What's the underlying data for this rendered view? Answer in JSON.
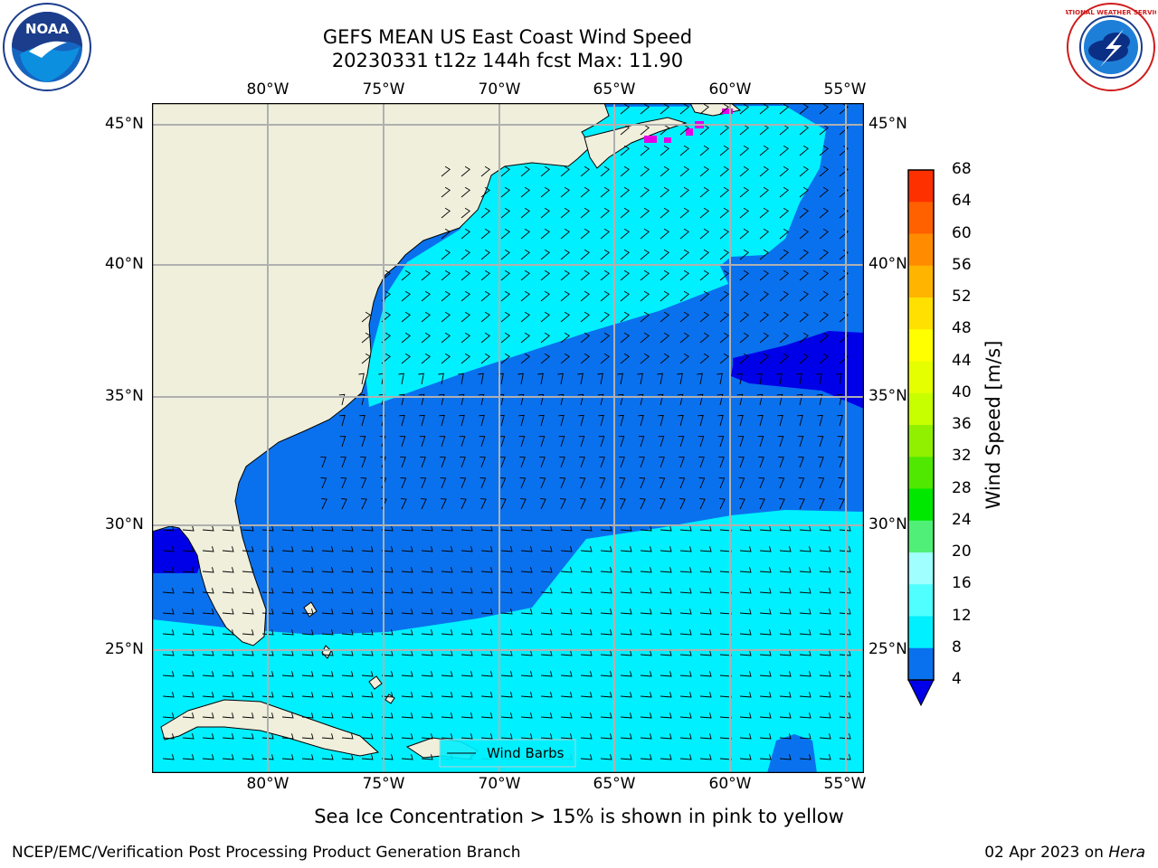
{
  "header": {
    "title_line1": "GEFS MEAN US East Coast Wind Speed",
    "title_line2": "20230331 t12z 144h fcst   Max: 11.90"
  },
  "logos": {
    "left": {
      "name": "noaa-logo",
      "text": "NOAA"
    },
    "right": {
      "name": "nws-logo",
      "text": "NATIONAL WEATHER SERVICE"
    }
  },
  "map": {
    "lon_labels": [
      "80°W",
      "75°W",
      "70°W",
      "65°W",
      "60°W",
      "55°W"
    ],
    "lat_labels": [
      "45°N",
      "40°N",
      "35°N",
      "30°N",
      "25°N"
    ],
    "legend_label": "Wind Barbs",
    "colors": {
      "land": "#efefdc",
      "band_4_8": "#0a71ee",
      "band_8_12": "#00f0ff",
      "band_below_4": "#0000e8",
      "sea_ice": "#e400e4",
      "grid": "#b0b0b0"
    }
  },
  "colorbar": {
    "label": "Wind Speed [m/s]",
    "ticks": [
      "68",
      "64",
      "60",
      "56",
      "52",
      "48",
      "44",
      "40",
      "36",
      "32",
      "28",
      "24",
      "20",
      "16",
      "12",
      "8",
      "4"
    ],
    "colors": [
      "#ff0000",
      "#ff3000",
      "#ff6000",
      "#ff8c00",
      "#ffb400",
      "#ffe000",
      "#ffff00",
      "#e6ff00",
      "#c8ff00",
      "#90f000",
      "#50e800",
      "#00e800",
      "#50f078",
      "#a0ffff",
      "#50ffff",
      "#00f0ff",
      "#0a71ee"
    ],
    "extend_color": "#0000e8"
  },
  "footer": {
    "note": "Sea Ice Concentration > 15% is shown in pink to yellow",
    "credit_left": "NCEP/EMC/Verification Post Processing Product Generation Branch",
    "date": "02 Apr 2023",
    "on": "on",
    "machine": "Hera"
  }
}
